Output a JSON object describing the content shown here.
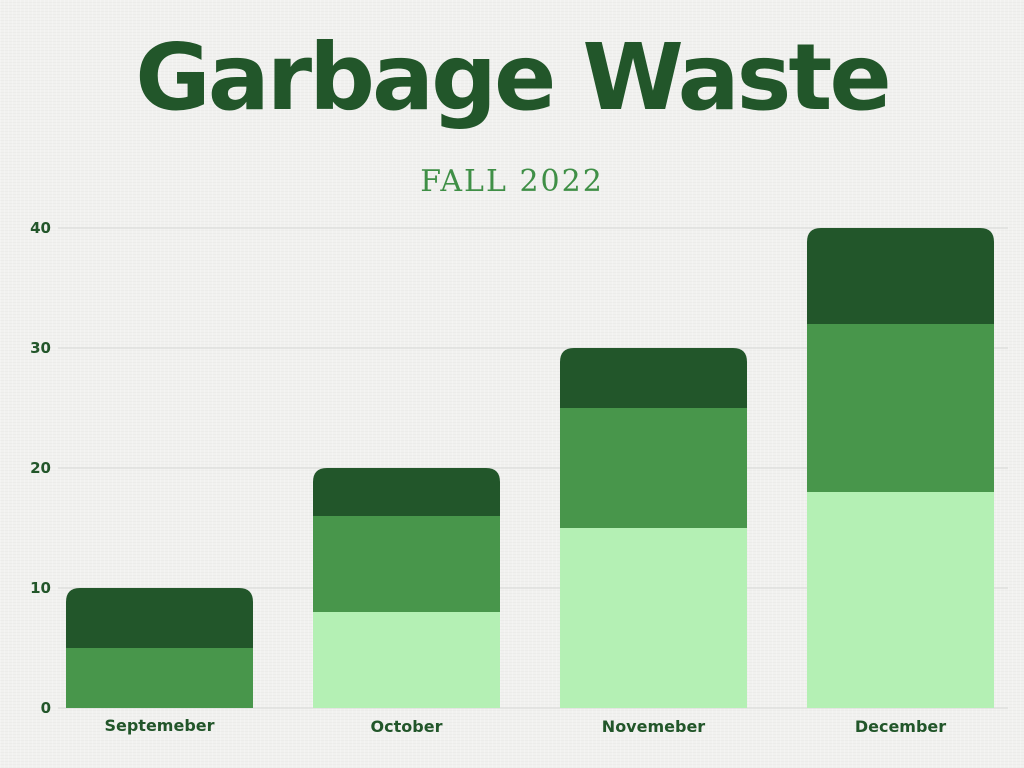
{
  "colors": {
    "background": "#f1f1ef",
    "title": "#22562a",
    "subtitle": "#3f8f46",
    "axis_text": "#22562a",
    "gridline": "#d6d7d5"
  },
  "chart_data": {
    "type": "bar",
    "stacked": true,
    "title": "Garbage Waste",
    "subtitle": "FALL 2022",
    "xlabel": "",
    "ylabel": "",
    "ylim": [
      0,
      40
    ],
    "yticks": [
      0,
      10,
      20,
      30,
      40
    ],
    "grid": true,
    "legend": "none",
    "categories": [
      "Septemeber",
      "October",
      "Novemeber",
      "December"
    ],
    "series": [
      {
        "color": "#b4f0b4",
        "values": [
          0,
          8,
          15,
          18
        ]
      },
      {
        "color": "#48964b",
        "values": [
          5,
          8,
          10,
          14
        ]
      },
      {
        "color": "#22562a",
        "values": [
          5,
          4,
          5,
          8
        ]
      }
    ]
  }
}
